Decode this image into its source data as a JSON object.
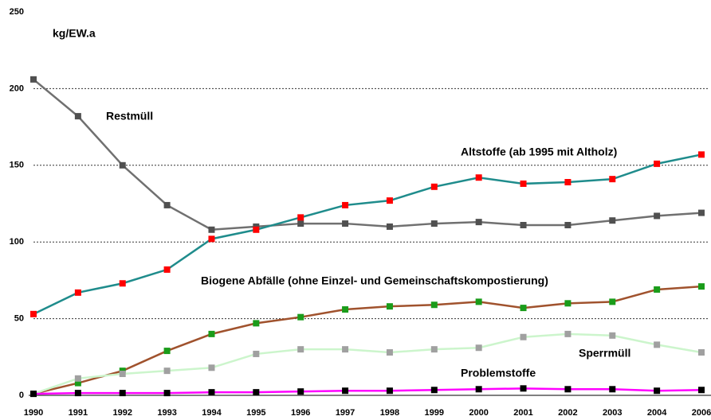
{
  "chart_data": {
    "type": "line",
    "unit_label": "kg/EW.a",
    "categories": [
      "1990",
      "1991",
      "1992",
      "1993",
      "1994",
      "1995",
      "1996",
      "1997",
      "1998",
      "1999",
      "2000",
      "2001",
      "2002",
      "2003",
      "2004",
      "2006"
    ],
    "ylim": [
      0,
      250
    ],
    "yticks": [
      0,
      50,
      100,
      150,
      200,
      250
    ],
    "grid": true,
    "series": [
      {
        "name": "Restmüll",
        "color": "#707070",
        "marker_color": "#505050",
        "values": [
          206,
          182,
          150,
          124,
          108,
          110,
          112,
          112,
          110,
          112,
          113,
          111,
          111,
          114,
          117,
          119
        ]
      },
      {
        "name": "Altstoffe (ab 1995 mit Altholz)",
        "color": "#1f8c8c",
        "marker_color": "#ff0000",
        "values": [
          53,
          67,
          73,
          82,
          102,
          108,
          116,
          124,
          127,
          136,
          142,
          138,
          139,
          141,
          151,
          157
        ]
      },
      {
        "name": "Biogene Abfälle (ohne Einzel- und Gemeinschaftskompostierung)",
        "color": "#a0522d",
        "marker_color": "#1a9c1a",
        "values": [
          1,
          8,
          16,
          29,
          40,
          47,
          51,
          56,
          58,
          59,
          61,
          57,
          60,
          61,
          69,
          71
        ]
      },
      {
        "name": "Sperrmüll",
        "color": "#ccf5cc",
        "marker_color": "#a0a0a0",
        "values": [
          1,
          11,
          14,
          16,
          18,
          27,
          30,
          30,
          28,
          30,
          31,
          38,
          40,
          39,
          33,
          28
        ]
      },
      {
        "name": "Problemstoffe",
        "color": "#ff00ff",
        "marker_color": "#000000",
        "values": [
          1,
          1.5,
          1.5,
          1.5,
          2,
          2,
          2.5,
          3,
          3,
          3.5,
          4,
          4.5,
          4,
          4,
          3,
          3.5
        ]
      }
    ]
  }
}
